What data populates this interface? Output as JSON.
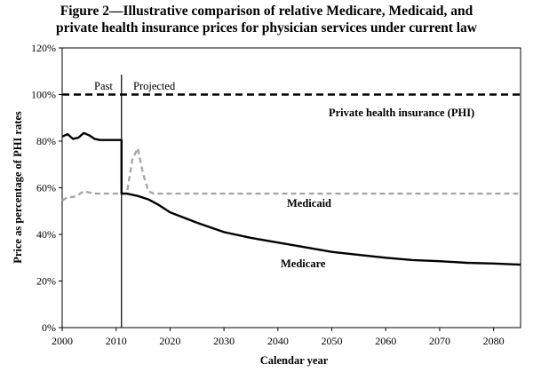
{
  "chart_data": {
    "type": "line",
    "title_line1": "Figure 2—Illustrative comparison of relative Medicare, Medicaid, and",
    "title_line2": "private health insurance prices for physician services under current law",
    "xlabel": "Calendar year",
    "ylabel": "Price as percentage of PHI rates",
    "xlim": [
      2000,
      2085
    ],
    "ylim": [
      0,
      120
    ],
    "x_ticks": [
      "2000",
      "2010",
      "2020",
      "2030",
      "2040",
      "2050",
      "2060",
      "2070",
      "2080"
    ],
    "y_ticks": [
      "0%",
      "20%",
      "40%",
      "60%",
      "80%",
      "100%",
      "120%"
    ],
    "grid": false,
    "divider_year": 2011,
    "annotations": {
      "past": "Past",
      "projected": "Projected"
    },
    "series": [
      {
        "name": "Private health insurance (PHI)",
        "style": "dashed",
        "color": "#000000",
        "x": [
          2000,
          2085
        ],
        "y": [
          100,
          100
        ]
      },
      {
        "name": "Medicaid",
        "style": "dashed",
        "color": "#a6a6a6",
        "x": [
          2000,
          2001,
          2002,
          2003,
          2004,
          2005,
          2006,
          2007,
          2008,
          2009,
          2010,
          2011,
          2012,
          2013,
          2014,
          2015,
          2016,
          2017,
          2018,
          2020,
          2030,
          2040,
          2050,
          2060,
          2070,
          2080,
          2085
        ],
        "y": [
          54.5,
          56,
          56,
          57,
          58.5,
          58,
          57.5,
          57.5,
          57.5,
          57.5,
          57.5,
          57.5,
          57.5,
          72,
          77,
          66,
          58.5,
          57.5,
          57.5,
          57.5,
          57.5,
          57.5,
          57.5,
          57.5,
          57.5,
          57.5,
          57.5
        ]
      },
      {
        "name": "Medicare",
        "style": "solid",
        "color": "#000000",
        "x": [
          2000,
          2001,
          2002,
          2003,
          2004,
          2005,
          2006,
          2007,
          2008,
          2009,
          2010,
          2011,
          2011,
          2012,
          2014,
          2016,
          2018,
          2020,
          2025,
          2030,
          2035,
          2040,
          2045,
          2050,
          2055,
          2060,
          2065,
          2070,
          2075,
          2080,
          2085
        ],
        "y": [
          82,
          83,
          81,
          81.5,
          83.5,
          82.5,
          81,
          80.5,
          80.5,
          80.5,
          80.5,
          80.5,
          57.5,
          57.5,
          56.5,
          55,
          52.5,
          49.5,
          45,
          41,
          38.5,
          36.5,
          34.5,
          32.5,
          31.2,
          30,
          29,
          28.5,
          27.8,
          27.5,
          27
        ]
      }
    ],
    "series_labels": {
      "phi": "Private health insurance (PHI)",
      "medicaid": "Medicaid",
      "medicare": "Medicare"
    }
  }
}
